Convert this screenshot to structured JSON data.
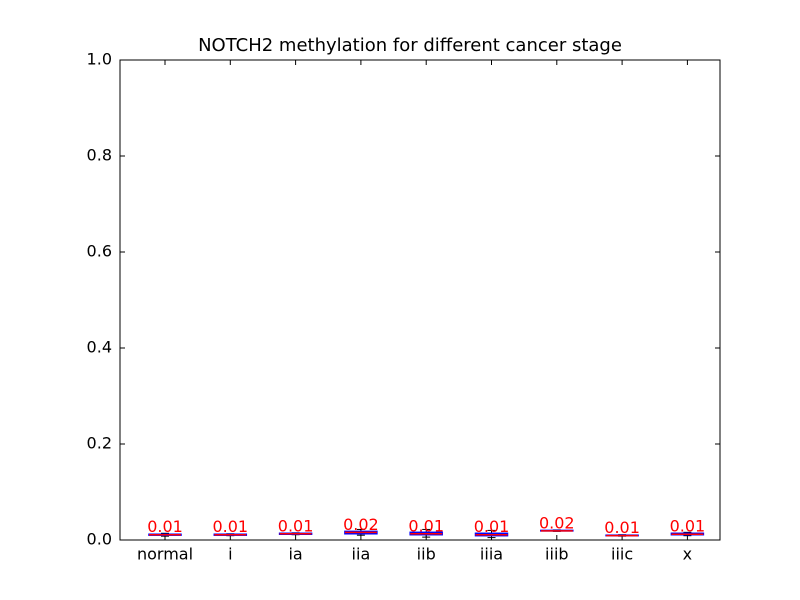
{
  "chart_data": {
    "type": "box",
    "title": "NOTCH2 methylation for different cancer stage",
    "categories": [
      "normal",
      "i",
      "ia",
      "iia",
      "iib",
      "iiia",
      "iiib",
      "iiic",
      "x"
    ],
    "boxes": [
      {
        "low": 0.008,
        "q1": 0.01,
        "median": 0.011,
        "q3": 0.012,
        "high": 0.014
      },
      {
        "low": 0.009,
        "q1": 0.01,
        "median": 0.011,
        "q3": 0.012,
        "high": 0.013
      },
      {
        "low": 0.011,
        "q1": 0.012,
        "median": 0.013,
        "q3": 0.014,
        "high": 0.015
      },
      {
        "low": 0.01,
        "q1": 0.013,
        "median": 0.016,
        "q3": 0.018,
        "high": 0.022
      },
      {
        "low": 0.006,
        "q1": 0.011,
        "median": 0.013,
        "q3": 0.016,
        "high": 0.022
      },
      {
        "low": 0.005,
        "q1": 0.009,
        "median": 0.011,
        "q3": 0.014,
        "high": 0.02
      },
      {
        "low": 0.018,
        "q1": 0.019,
        "median": 0.019,
        "q3": 0.02,
        "high": 0.021
      },
      {
        "low": 0.008,
        "q1": 0.009,
        "median": 0.009,
        "q3": 0.01,
        "high": 0.011
      },
      {
        "low": 0.009,
        "q1": 0.011,
        "median": 0.012,
        "q3": 0.014,
        "high": 0.016
      }
    ],
    "value_labels": [
      "0.01",
      "0.01",
      "0.01",
      "0.02",
      "0.01",
      "0.01",
      "0.02",
      "0.01",
      "0.01"
    ],
    "box_color": "#0000ff",
    "median_color": "#ff0000",
    "whisker_color": "#000000",
    "label_color": "#ff0000",
    "ylim": [
      0,
      1
    ],
    "yticks": [
      {
        "value": 0,
        "label": "0.0"
      },
      0.2,
      0.4,
      0.6,
      0.8,
      {
        "value": 1,
        "label": "1.0"
      }
    ]
  }
}
